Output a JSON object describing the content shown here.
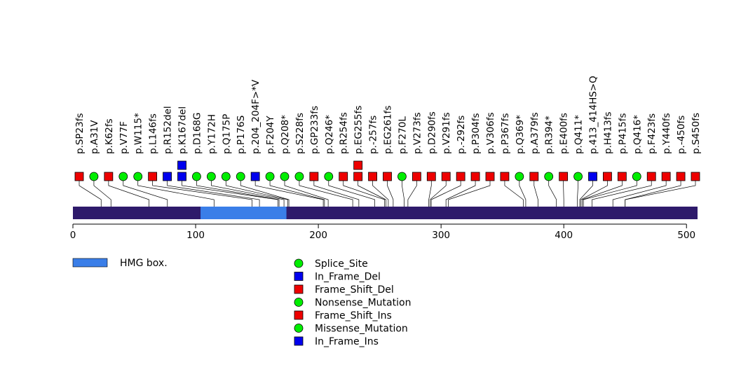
{
  "chart_data": {
    "type": "lollipop",
    "protein_length": 509,
    "x_axis": {
      "range": [
        0,
        509
      ],
      "ticks": [
        0,
        100,
        200,
        300,
        400,
        500
      ]
    },
    "domains": [
      {
        "name": "HMG box.",
        "start": 104,
        "end": 174,
        "color": "#3a7ee8"
      }
    ],
    "mutation_types": [
      {
        "name": "Splice_Site",
        "shape": "circle",
        "color": "#00ee00"
      },
      {
        "name": "In_Frame_Del",
        "shape": "square",
        "color": "#0000ee"
      },
      {
        "name": "Frame_Shift_Del",
        "shape": "square",
        "color": "#ee0000"
      },
      {
        "name": "Nonsense_Mutation",
        "shape": "circle",
        "color": "#00ee00"
      },
      {
        "name": "Frame_Shift_Ins",
        "shape": "square",
        "color": "#ee0000"
      },
      {
        "name": "Missense_Mutation",
        "shape": "circle",
        "color": "#00ee00"
      },
      {
        "name": "In_Frame_Ins",
        "shape": "square",
        "color": "#0000ee"
      }
    ],
    "mutations": [
      {
        "label": "p.SP23fs",
        "position": 23,
        "type": "Frame_Shift_Del"
      },
      {
        "label": "p.A31V",
        "position": 31,
        "type": "Missense_Mutation"
      },
      {
        "label": "p.K62fs",
        "position": 62,
        "type": "Frame_Shift_Del"
      },
      {
        "label": "p.V77F",
        "position": 77,
        "type": "Missense_Mutation"
      },
      {
        "label": "p.W115*",
        "position": 115,
        "type": "Nonsense_Mutation"
      },
      {
        "label": "p.L146fs",
        "position": 146,
        "type": "Frame_Shift_Del"
      },
      {
        "label": "p.R152del",
        "position": 152,
        "type": "In_Frame_Del"
      },
      {
        "label": "p.K167del",
        "position": 167,
        "type": "In_Frame_Del",
        "extra": {
          "type": "In_Frame_Del"
        }
      },
      {
        "label": "p.D168G",
        "position": 168,
        "type": "Missense_Mutation"
      },
      {
        "label": "p.Y172H",
        "position": 172,
        "type": "Missense_Mutation"
      },
      {
        "label": "p.Q175P",
        "position": 175,
        "type": "Missense_Mutation"
      },
      {
        "label": "p.P176S",
        "position": 176,
        "type": "Missense_Mutation"
      },
      {
        "label": "p.204_204F>*V",
        "position": 204,
        "type": "In_Frame_Ins"
      },
      {
        "label": "p.F204Y",
        "position": 205,
        "type": "Missense_Mutation"
      },
      {
        "label": "p.Q208*",
        "position": 208,
        "type": "Nonsense_Mutation"
      },
      {
        "label": "p.S228fs",
        "position": 228,
        "type": "Splice_Site"
      },
      {
        "label": "p.GP233fs",
        "position": 233,
        "type": "Frame_Shift_Del"
      },
      {
        "label": "p.Q246*",
        "position": 246,
        "type": "Nonsense_Mutation"
      },
      {
        "label": "p.R254fs",
        "position": 254,
        "type": "Frame_Shift_Del"
      },
      {
        "label": "p.EG255fs",
        "position": 255,
        "type": "Frame_Shift_Del",
        "extra": {
          "type": "Frame_Shift_Ins"
        }
      },
      {
        "label": "p.-257fs",
        "position": 257,
        "type": "Frame_Shift_Del"
      },
      {
        "label": "p.EG261fs",
        "position": 261,
        "type": "Frame_Shift_Del"
      },
      {
        "label": "p.F270L",
        "position": 270,
        "type": "Missense_Mutation"
      },
      {
        "label": "p.V273fs",
        "position": 273,
        "type": "Frame_Shift_Del"
      },
      {
        "label": "p.D290fs",
        "position": 290,
        "type": "Frame_Shift_Del"
      },
      {
        "label": "p.V291fs",
        "position": 291,
        "type": "Frame_Shift_Del"
      },
      {
        "label": "p.-292fs",
        "position": 292,
        "type": "Frame_Shift_Del"
      },
      {
        "label": "p.P304fs",
        "position": 304,
        "type": "Frame_Shift_Del"
      },
      {
        "label": "p.V306fs",
        "position": 306,
        "type": "Frame_Shift_Del"
      },
      {
        "label": "p.P367fs",
        "position": 367,
        "type": "Frame_Shift_Del"
      },
      {
        "label": "p.Q369*",
        "position": 369,
        "type": "Nonsense_Mutation"
      },
      {
        "label": "p.A379fs",
        "position": 379,
        "type": "Frame_Shift_Del"
      },
      {
        "label": "p.R394*",
        "position": 394,
        "type": "Nonsense_Mutation"
      },
      {
        "label": "p.E400fs",
        "position": 400,
        "type": "Frame_Shift_Del"
      },
      {
        "label": "p.Q411*",
        "position": 411,
        "type": "Nonsense_Mutation"
      },
      {
        "label": "p.413_414HS>Q",
        "position": 413,
        "type": "In_Frame_Del"
      },
      {
        "label": "p.H413fs",
        "position": 414,
        "type": "Frame_Shift_Del"
      },
      {
        "label": "p.P415fs",
        "position": 415,
        "type": "Frame_Shift_Del"
      },
      {
        "label": "p.Q416*",
        "position": 416,
        "type": "Nonsense_Mutation"
      },
      {
        "label": "p.F423fs",
        "position": 423,
        "type": "Frame_Shift_Del"
      },
      {
        "label": "p.Y440fs",
        "position": 440,
        "type": "Frame_Shift_Del"
      },
      {
        "label": "p.-450fs",
        "position": 450,
        "type": "Frame_Shift_Del"
      },
      {
        "label": "p.S450fs",
        "position": 450,
        "type": "Frame_Shift_Del"
      }
    ],
    "legend": {
      "domain_entry": "HMG box.",
      "placement": "bottom"
    }
  }
}
